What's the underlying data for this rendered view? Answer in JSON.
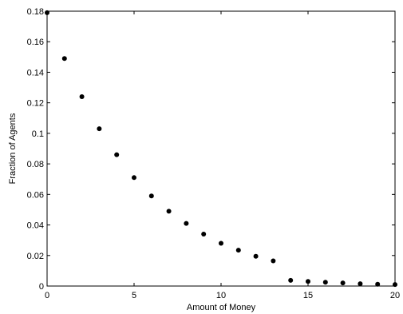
{
  "chart_data": {
    "type": "scatter",
    "title": "",
    "xlabel": "Amount of Money",
    "ylabel": "Fraction of Agents",
    "xlim": [
      0,
      20
    ],
    "ylim": [
      0,
      0.18
    ],
    "xticks": [
      0,
      5,
      10,
      15,
      20
    ],
    "xtick_labels": [
      "0",
      "5",
      "10",
      "15",
      "20"
    ],
    "yticks": [
      0,
      0.02,
      0.04,
      0.06,
      0.08,
      0.1,
      0.12,
      0.14,
      0.16,
      0.18
    ],
    "ytick_labels": [
      "0",
      "0.02",
      "0.04",
      "0.06",
      "0.08",
      "0.1",
      "0.12",
      "0.14",
      "0.16",
      "0.18"
    ],
    "grid": false,
    "legend": "none",
    "marker_color": "#000000",
    "x": [
      0,
      1,
      2,
      3,
      4,
      5,
      6,
      7,
      8,
      9,
      10,
      11,
      12,
      13,
      14,
      15,
      16,
      17,
      18,
      19,
      20
    ],
    "y": [
      0.179,
      0.149,
      0.124,
      0.103,
      0.086,
      0.071,
      0.059,
      0.049,
      0.041,
      0.034,
      0.028,
      0.0235,
      0.0195,
      0.0165,
      0.0037,
      0.003,
      0.0025,
      0.002,
      0.0015,
      0.0012,
      0.001
    ]
  }
}
